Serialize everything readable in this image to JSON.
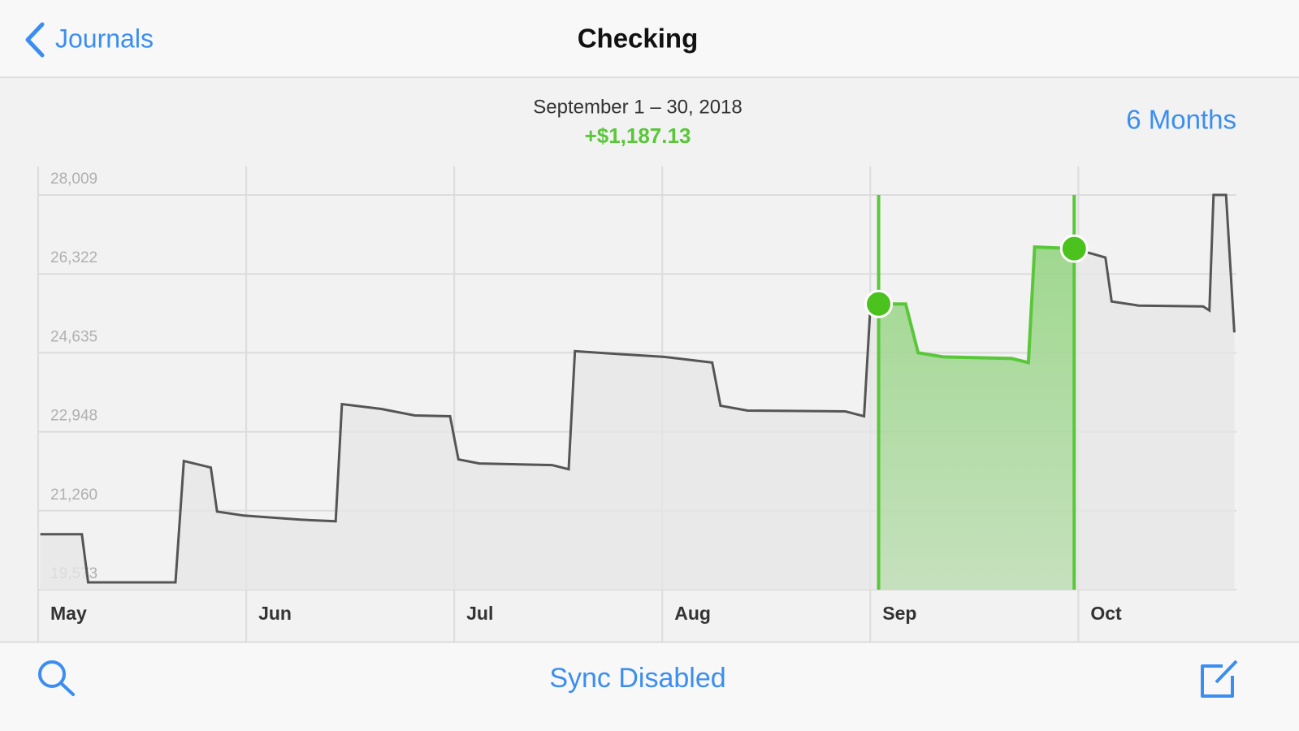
{
  "nav": {
    "back": "Journals",
    "title": "Checking"
  },
  "header": {
    "period": "September 1 – 30, 2018",
    "change": "+$1,187.13",
    "range": "6 Months"
  },
  "chart_data": {
    "type": "line",
    "color": "#555555",
    "grid": true,
    "x": [
      0.01,
      0.21,
      0.24,
      0.66,
      0.7,
      0.83,
      0.86,
      0.99,
      1.26,
      1.43,
      1.46,
      1.65,
      1.81,
      1.98,
      2.02,
      2.12,
      2.47,
      2.55,
      2.58,
      2.82,
      3.01,
      3.24,
      3.28,
      3.41,
      3.88,
      3.97,
      4.0,
      4.04,
      4.17,
      4.23,
      4.35,
      4.68,
      4.76,
      4.79,
      4.98,
      5.13,
      5.16,
      5.29,
      5.6,
      5.63,
      5.65,
      5.71,
      5.75
    ],
    "values": [
      20756,
      20756,
      19730,
      19730,
      22322,
      22183,
      21243,
      21156,
      21069,
      21034,
      23540,
      23435,
      23297,
      23279,
      22357,
      22270,
      22235,
      22148,
      24670,
      24600,
      24548,
      24426,
      23505,
      23400,
      23383,
      23279,
      25592,
      25679,
      25679,
      24635,
      24548,
      24513,
      24426,
      26896,
      26861,
      26670,
      25731,
      25644,
      25627,
      25540,
      28009,
      28009,
      25070
    ],
    "selection": {
      "color": "#5ac73a",
      "x": [
        4.04,
        4.98
      ],
      "values": [
        25679,
        26861
      ]
    },
    "xlim": [
      0,
      5.76
    ],
    "xticks": [
      {
        "value": 0,
        "label": "May"
      },
      {
        "value": 1,
        "label": "Jun"
      },
      {
        "value": 2,
        "label": "Jul"
      },
      {
        "value": 3,
        "label": "Aug"
      },
      {
        "value": 4,
        "label": "Sep"
      },
      {
        "value": 5,
        "label": "Oct"
      }
    ],
    "ylim": [
      19573,
      28009
    ],
    "yticks": [
      {
        "value": 19573,
        "label": "19,573"
      },
      {
        "value": 21260,
        "label": "21,260"
      },
      {
        "value": 22948,
        "label": "22,948"
      },
      {
        "value": 24635,
        "label": "24,635"
      },
      {
        "value": 26322,
        "label": "26,322"
      },
      {
        "value": 28009,
        "label": "28,009"
      }
    ]
  },
  "toolbar": {
    "status": "Sync Disabled"
  }
}
